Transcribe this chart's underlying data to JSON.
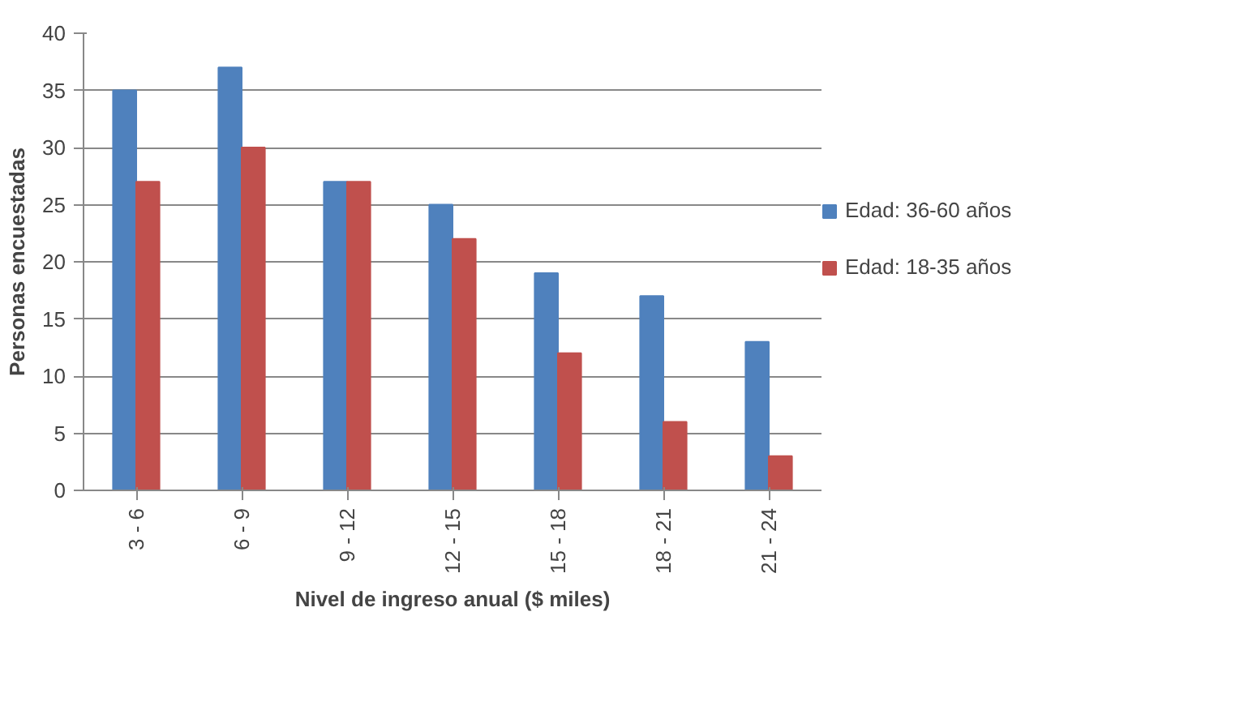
{
  "chart_data": {
    "type": "bar",
    "xlabel": "Nivel de ingreso anual ($ miles)",
    "ylabel": "Personas encuestadas",
    "categories": [
      "3 - 6",
      "6 - 9",
      "9 - 12",
      "12 - 15",
      "15 - 18",
      "18 - 21",
      "21 - 24"
    ],
    "series": [
      {
        "name": "Edad: 36-60 años",
        "color": "#4f81bd",
        "values": [
          35,
          37,
          27,
          25,
          19,
          17,
          13
        ]
      },
      {
        "name": "Edad: 18-35 años",
        "color": "#c0504d",
        "values": [
          27,
          30,
          27,
          22,
          12,
          6,
          3
        ]
      }
    ],
    "ylim": [
      0,
      40
    ],
    "yticks": [
      0,
      5,
      10,
      15,
      20,
      25,
      30,
      35,
      40
    ],
    "grid": "y",
    "legend": "right"
  }
}
